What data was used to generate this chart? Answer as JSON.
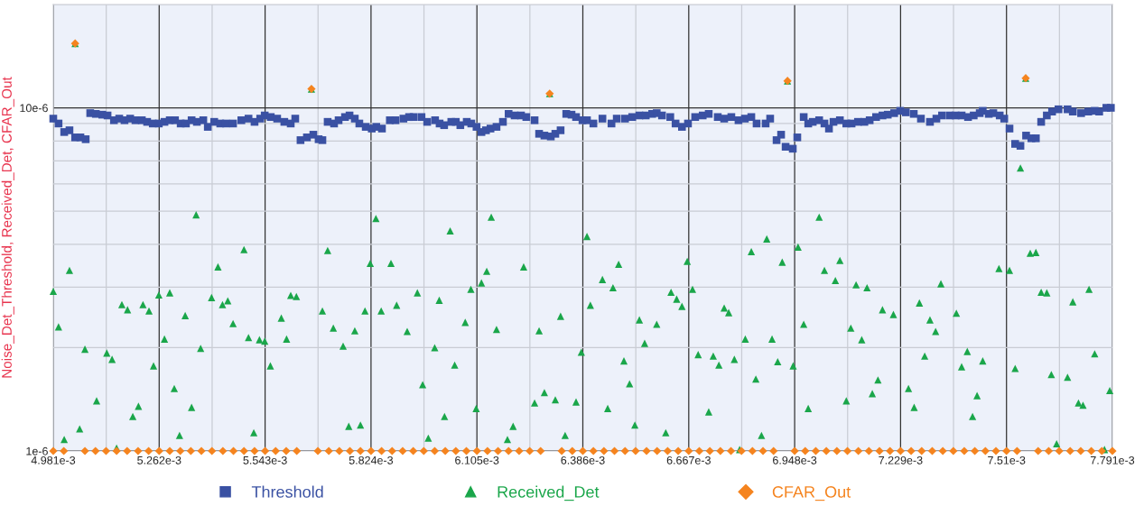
{
  "chart_data": {
    "type": "scatter",
    "ylabel": "Noise_Det_Threshold, Received_Det, CFAR_Out",
    "log": "y",
    "xlim": [
      0.004981,
      0.007791
    ],
    "ylim": [
      1e-06,
      2e-05
    ],
    "xticks": [
      {
        "value": 0.004981,
        "label": "4.981e-3"
      },
      {
        "value": 0.005262,
        "label": "5.262e-3"
      },
      {
        "value": 0.005543,
        "label": "5.543e-3"
      },
      {
        "value": 0.005824,
        "label": "5.824e-3"
      },
      {
        "value": 0.006105,
        "label": "6.105e-3"
      },
      {
        "value": 0.006386,
        "label": "6.386e-3"
      },
      {
        "value": 0.006667,
        "label": "6.667e-3"
      },
      {
        "value": 0.006948,
        "label": "6.948e-3"
      },
      {
        "value": 0.007229,
        "label": "7.229e-3"
      },
      {
        "value": 0.00751,
        "label": "7.51e-3"
      },
      {
        "value": 0.007791,
        "label": "7.791e-3"
      }
    ],
    "yticks": [
      {
        "value": 1e-06,
        "label": "1e-6"
      },
      {
        "value": 1e-05,
        "label": "10e-6"
      }
    ],
    "grid": true,
    "legend": "bottom",
    "series": [
      {
        "name": "Threshold",
        "color": "#3a51a3",
        "marker": "square",
        "x": [
          0.004981,
          0.004995,
          0.00501,
          0.005024,
          0.005039,
          0.005053,
          0.005067,
          0.005079,
          0.005094,
          0.005111,
          0.005125,
          0.005142,
          0.005156,
          0.00517,
          0.005185,
          0.005199,
          0.005216,
          0.00523,
          0.005245,
          0.005261,
          0.005276,
          0.00529,
          0.005304,
          0.005319,
          0.005333,
          0.005348,
          0.005362,
          0.005379,
          0.005391,
          0.005408,
          0.005424,
          0.005439,
          0.005458,
          0.00548,
          0.005499,
          0.005515,
          0.00553,
          0.005542,
          0.005558,
          0.005575,
          0.005594,
          0.005611,
          0.005623,
          0.005637,
          0.005654,
          0.005671,
          0.005685,
          0.005695,
          0.005709,
          0.005726,
          0.005738,
          0.005755,
          0.005767,
          0.005781,
          0.005793,
          0.00581,
          0.005826,
          0.005838,
          0.005853,
          0.005874,
          0.005889,
          0.00591,
          0.005925,
          0.005937,
          0.005958,
          0.005973,
          0.005994,
          0.006006,
          0.006018,
          0.006037,
          0.006049,
          0.006061,
          0.006078,
          0.00609,
          0.006104,
          0.006117,
          0.006129,
          0.006141,
          0.006157,
          0.006174,
          0.006189,
          0.006205,
          0.006222,
          0.006236,
          0.006258,
          0.00627,
          0.006284,
          0.006301,
          0.006313,
          0.006327,
          0.006342,
          0.006356,
          0.006368,
          0.006385,
          0.006397,
          0.006414,
          0.006438,
          0.006462,
          0.006476,
          0.006498,
          0.006517,
          0.006536,
          0.006553,
          0.00657,
          0.006582,
          0.006596,
          0.006618,
          0.006632,
          0.006649,
          0.006665,
          0.006684,
          0.006704,
          0.00672,
          0.006744,
          0.006761,
          0.00678,
          0.006799,
          0.006816,
          0.006833,
          0.006847,
          0.006871,
          0.006883,
          0.0069,
          0.006912,
          0.006924,
          0.006943,
          0.006955,
          0.006972,
          0.006984,
          0.006996,
          0.007013,
          0.007027,
          0.007039,
          0.007051,
          0.007068,
          0.007085,
          0.007099,
          0.007116,
          0.007133,
          0.007147,
          0.007164,
          0.007181,
          0.007195,
          0.007212,
          0.007228,
          0.007243,
          0.007264,
          0.007283,
          0.007307,
          0.007324,
          0.007339,
          0.00736,
          0.007375,
          0.007391,
          0.007408,
          0.007423,
          0.007439,
          0.007447,
          0.007463,
          0.007475,
          0.007492,
          0.007504,
          0.007518,
          0.007533,
          0.007547,
          0.007562,
          0.007576,
          0.007588,
          0.007602,
          0.007617,
          0.007631,
          0.007648,
          0.007672,
          0.007686,
          0.007708,
          0.007727,
          0.007744,
          0.007756,
          0.007775,
          0.007787
        ],
        "values": [
          9.3e-06,
          9e-06,
          8.5e-06,
          8.6e-06,
          8.2e-06,
          8.2e-06,
          8.1e-06,
          9.65e-06,
          9.6e-06,
          9.55e-06,
          9.5e-06,
          9.2e-06,
          9.3e-06,
          9.2e-06,
          9.3e-06,
          9.2e-06,
          9.2e-06,
          9.1e-06,
          9e-06,
          9e-06,
          9.1e-06,
          9.2e-06,
          9.2e-06,
          9e-06,
          9e-06,
          9.2e-06,
          9.1e-06,
          9.2e-06,
          8.8e-06,
          9.1e-06,
          9e-06,
          9e-06,
          9e-06,
          9.2e-06,
          9.3e-06,
          9.1e-06,
          9.3e-06,
          9.5e-06,
          9.4e-06,
          9.3e-06,
          9.1e-06,
          9e-06,
          9.3e-06,
          8.05e-06,
          8.2e-06,
          8.35e-06,
          8.1e-06,
          8.05e-06,
          9.1e-06,
          9e-06,
          9.2e-06,
          9.4e-06,
          9.5e-06,
          9.3e-06,
          9e-06,
          8.8e-06,
          8.7e-06,
          8.8e-06,
          8.7e-06,
          9.2e-06,
          9.2e-06,
          9.3e-06,
          9.4e-06,
          9.4e-06,
          9.4e-06,
          9.1e-06,
          9.2e-06,
          9e-06,
          8.9e-06,
          9.1e-06,
          9.1e-06,
          8.9e-06,
          9.1e-06,
          9e-06,
          8.8e-06,
          8.5e-06,
          8.6e-06,
          8.7e-06,
          8.8e-06,
          9.1e-06,
          9.6e-06,
          9.5e-06,
          9.5e-06,
          9.4e-06,
          9.2e-06,
          8.4e-06,
          8.3e-06,
          8.25e-06,
          8.4e-06,
          8.6e-06,
          9.6e-06,
          9.55e-06,
          9.4e-06,
          9.2e-06,
          9.2e-06,
          9e-06,
          9.3e-06,
          9e-06,
          9.3e-06,
          9.3e-06,
          9.4e-06,
          9.5e-06,
          9.5e-06,
          9.6e-06,
          9.65e-06,
          9.5e-06,
          9.4e-06,
          9e-06,
          8.8e-06,
          9e-06,
          9.4e-06,
          9.5e-06,
          9.6e-06,
          9.4e-06,
          9.3e-06,
          9.4e-06,
          9.2e-06,
          9.3e-06,
          9.4e-06,
          9e-06,
          9e-06,
          9.3e-06,
          8.05e-06,
          8.35e-06,
          7.7e-06,
          7.6e-06,
          8.2e-06,
          9.4e-06,
          9e-06,
          9.1e-06,
          9.2e-06,
          9e-06,
          8.7e-06,
          9.1e-06,
          9.2e-06,
          9e-06,
          9e-06,
          9.1e-06,
          9.1e-06,
          9.2e-06,
          9.4e-06,
          9.5e-06,
          9.55e-06,
          9.65e-06,
          9.8e-06,
          9.7e-06,
          9.6e-06,
          9.3e-06,
          9.1e-06,
          9.3e-06,
          9.5e-06,
          9.5e-06,
          9.5e-06,
          9.5e-06,
          9.4e-06,
          9.5e-06,
          9.65e-06,
          9.8e-06,
          9.6e-06,
          9.65e-06,
          9.5e-06,
          9.3e-06,
          8.7e-06,
          7.85e-06,
          7.75e-06,
          8.3e-06,
          8.15e-06,
          8.15e-06,
          9.1e-06,
          9.5e-06,
          9.75e-06,
          9.9e-06,
          9.9e-06,
          9.75e-06,
          9.65e-06,
          9.75e-06,
          9.8e-06,
          9.75e-06,
          1e-05,
          1e-05
        ]
      },
      {
        "name": "Received_Det",
        "color": "#1aa64a",
        "marker": "triangle",
        "x": [
          0.004981,
          0.004995,
          0.00501,
          0.005024,
          0.005039,
          0.005051,
          0.005065,
          0.005096,
          0.005123,
          0.005137,
          0.005149,
          0.005163,
          0.005178,
          0.005192,
          0.005207,
          0.005219,
          0.005235,
          0.005247,
          0.005261,
          0.005276,
          0.00529,
          0.005302,
          0.005316,
          0.005331,
          0.005348,
          0.00536,
          0.005372,
          0.005401,
          0.005418,
          0.00543,
          0.005444,
          0.005458,
          0.005487,
          0.005499,
          0.005513,
          0.005528,
          0.005542,
          0.005557,
          0.005586,
          0.0056,
          0.005611,
          0.005626,
          0.005666,
          0.005695,
          0.005709,
          0.005724,
          0.00575,
          0.005765,
          0.005781,
          0.005796,
          0.005808,
          0.005822,
          0.005837,
          0.005851,
          0.005877,
          0.005892,
          0.00592,
          0.005947,
          0.005961,
          0.005976,
          0.005993,
          0.006005,
          0.006019,
          0.006034,
          0.006046,
          0.006074,
          0.006089,
          0.006103,
          0.006117,
          0.006131,
          0.006143,
          0.006157,
          0.006186,
          0.006201,
          0.006229,
          0.006258,
          0.00627,
          0.006284,
          0.006298,
          0.006313,
          0.006327,
          0.006339,
          0.006368,
          0.006382,
          0.006397,
          0.006406,
          0.006438,
          0.006452,
          0.006466,
          0.006481,
          0.006495,
          0.00651,
          0.006524,
          0.006536,
          0.00655,
          0.006582,
          0.006606,
          0.00662,
          0.006635,
          0.006649,
          0.006663,
          0.006677,
          0.006692,
          0.00672,
          0.006732,
          0.006747,
          0.006761,
          0.006773,
          0.006788,
          0.006802,
          0.006817,
          0.006833,
          0.006845,
          0.00686,
          0.006874,
          0.006888,
          0.006903,
          0.006915,
          0.006929,
          0.006944,
          0.006957,
          0.006972,
          0.006984,
          0.007013,
          0.007027,
          0.007056,
          0.007068,
          0.007085,
          0.007097,
          0.007111,
          0.007126,
          0.00714,
          0.007154,
          0.007169,
          0.007181,
          0.00721,
          0.00725,
          0.007265,
          0.007279,
          0.007293,
          0.007307,
          0.007322,
          0.007336,
          0.007377,
          0.007391,
          0.007406,
          0.00742,
          0.007432,
          0.007447,
          0.00749,
          0.007518,
          0.007533,
          0.007547,
          0.007561,
          0.007573,
          0.007588,
          0.007602,
          0.007617,
          0.007629,
          0.007643,
          0.007672,
          0.007686,
          0.007701,
          0.007713,
          0.007729,
          0.007744,
          0.00777,
          0.007784
        ],
        "values": [
          2.92e-06,
          2.3e-06,
          1.08e-06,
          3.36e-06,
          1.54e-05,
          1.16e-06,
          1.98e-06,
          1.4e-06,
          1.93e-06,
          1.85e-06,
          1.02e-06,
          2.67e-06,
          2.58e-06,
          1.26e-06,
          1.35e-06,
          2.67e-06,
          2.56e-06,
          1.77e-06,
          2.85e-06,
          2.12e-06,
          2.89e-06,
          1.52e-06,
          1.11e-06,
          2.48e-06,
          1.34e-06,
          4.88e-06,
          1.99e-06,
          2.8e-06,
          3.44e-06,
          2.67e-06,
          2.74e-06,
          2.35e-06,
          3.86e-06,
          2.14e-06,
          1.13e-06,
          2.11e-06,
          2.09e-06,
          1.77e-06,
          2.44e-06,
          2.12e-06,
          2.84e-06,
          2.82e-06,
          1.135e-05,
          2.56e-06,
          3.84e-06,
          2.28e-06,
          2.02e-06,
          1.18e-06,
          2.24e-06,
          1.19e-06,
          2.56e-06,
          3.52e-06,
          4.76e-06,
          2.56e-06,
          3.52e-06,
          2.66e-06,
          2.23e-06,
          2.89e-06,
          1.56e-06,
          1.09e-06,
          2e-06,
          2.75e-06,
          1.26e-06,
          4.38e-06,
          1.78e-06,
          2.37e-06,
          2.96e-06,
          1.33e-06,
          3.09e-06,
          3.34e-06,
          4.8e-06,
          2.26e-06,
          1.08e-06,
          1.18e-06,
          3.44e-06,
          1.38e-06,
          2.24e-06,
          1.48e-06,
          1.1e-05,
          1.41e-06,
          2.47e-06,
          1.11e-06,
          1.39e-06,
          1.94e-06,
          4.22e-06,
          2.66e-06,
          3.16e-06,
          1.33e-06,
          2.99e-06,
          3.5e-06,
          1.83e-06,
          1.57e-06,
          1.19e-06,
          2.41e-06,
          2.06e-06,
          2.34e-06,
          1.13e-06,
          2.9e-06,
          2.77e-06,
          2.64e-06,
          3.57e-06,
          2.96e-06,
          1.91e-06,
          1.3e-06,
          1.89e-06,
          1.78e-06,
          2.61e-06,
          2.53e-06,
          1.85e-06,
          1.01e-06,
          2.12e-06,
          3.81e-06,
          1.62e-06,
          1.11e-06,
          4.15e-06,
          2.12e-06,
          1.82e-06,
          3.55e-06,
          1.198e-05,
          1.77e-06,
          3.93e-06,
          2.34e-06,
          1.33e-06,
          4.8e-06,
          3.36e-06,
          3.14e-06,
          3.59e-06,
          1.4e-06,
          2.28e-06,
          3.05e-06,
          2.11e-06,
          2.99e-06,
          1.47e-06,
          1.61e-06,
          2.58e-06,
          2.5e-06,
          1.52e-06,
          1.34e-06,
          2.7e-06,
          1.89e-06,
          2.41e-06,
          2.23e-06,
          3.07e-06,
          2.52e-06,
          1.76e-06,
          1.95e-06,
          1.26e-06,
          1.45e-06,
          1.83e-06,
          3.4e-06,
          3.36e-06,
          1.74e-06,
          6.68e-06,
          1.22e-05,
          3.77e-06,
          3.79e-06,
          2.9e-06,
          2.89e-06,
          1.67e-06,
          1.05e-06,
          1.64e-06,
          2.72e-06,
          1.38e-06,
          1.36e-06,
          2.96e-06,
          1.92e-06,
          1.01e-06,
          1.5e-06
        ]
      },
      {
        "name": "CFAR_Out",
        "color": "#f5841f",
        "marker": "diamond",
        "x": [
          0.004981,
          0.005009,
          0.005039,
          0.005065,
          0.005093,
          0.005121,
          0.005149,
          0.005177,
          0.005206,
          0.005234,
          0.005262,
          0.00529,
          0.005318,
          0.005346,
          0.005374,
          0.005402,
          0.005431,
          0.005459,
          0.005487,
          0.005515,
          0.005543,
          0.005571,
          0.005599,
          0.005627,
          0.005666,
          0.005683,
          0.005712,
          0.00574,
          0.005768,
          0.005796,
          0.005824,
          0.005852,
          0.00588,
          0.005908,
          0.005936,
          0.005964,
          0.005993,
          0.006021,
          0.006049,
          0.006077,
          0.006105,
          0.006133,
          0.006161,
          0.006189,
          0.006217,
          0.006245,
          0.006274,
          0.006298,
          0.00633,
          0.006358,
          0.006386,
          0.006414,
          0.006442,
          0.00647,
          0.006498,
          0.006526,
          0.006555,
          0.006583,
          0.006611,
          0.006639,
          0.006667,
          0.006695,
          0.006723,
          0.006751,
          0.006779,
          0.006807,
          0.006836,
          0.006864,
          0.006892,
          0.006929,
          0.006948,
          0.006976,
          0.007004,
          0.007032,
          0.00706,
          0.007088,
          0.007117,
          0.007145,
          0.007173,
          0.007201,
          0.007229,
          0.007257,
          0.007285,
          0.007313,
          0.007341,
          0.007369,
          0.007398,
          0.007426,
          0.007454,
          0.007482,
          0.00751,
          0.007538,
          0.007561,
          0.007594,
          0.007622,
          0.00765,
          0.007679,
          0.007707,
          0.007735,
          0.007763,
          0.007791
        ],
        "values": [
          1e-06,
          1e-06,
          1.54e-05,
          1e-06,
          1e-06,
          1e-06,
          1e-06,
          1e-06,
          1e-06,
          1e-06,
          1e-06,
          1e-06,
          1e-06,
          1e-06,
          1e-06,
          1e-06,
          1e-06,
          1e-06,
          1e-06,
          1e-06,
          1e-06,
          1e-06,
          1e-06,
          1e-06,
          1.135e-05,
          1e-06,
          1e-06,
          1e-06,
          1e-06,
          1e-06,
          1e-06,
          1e-06,
          1e-06,
          1e-06,
          1e-06,
          1e-06,
          1e-06,
          1e-06,
          1e-06,
          1e-06,
          1e-06,
          1e-06,
          1e-06,
          1e-06,
          1e-06,
          1e-06,
          1e-06,
          1.1e-05,
          1e-06,
          1e-06,
          1e-06,
          1e-06,
          1e-06,
          1e-06,
          1e-06,
          1e-06,
          1e-06,
          1e-06,
          1e-06,
          1e-06,
          1e-06,
          1e-06,
          1e-06,
          1e-06,
          1e-06,
          1e-06,
          1e-06,
          1e-06,
          1e-06,
          1.198e-05,
          1e-06,
          1e-06,
          1e-06,
          1e-06,
          1e-06,
          1e-06,
          1e-06,
          1e-06,
          1e-06,
          1e-06,
          1e-06,
          1e-06,
          1e-06,
          1e-06,
          1e-06,
          1e-06,
          1e-06,
          1e-06,
          1e-06,
          1e-06,
          1e-06,
          1e-06,
          1.22e-05,
          1e-06,
          1e-06,
          1e-06,
          1e-06,
          1e-06,
          1e-06,
          1e-06,
          1e-06
        ]
      }
    ]
  }
}
